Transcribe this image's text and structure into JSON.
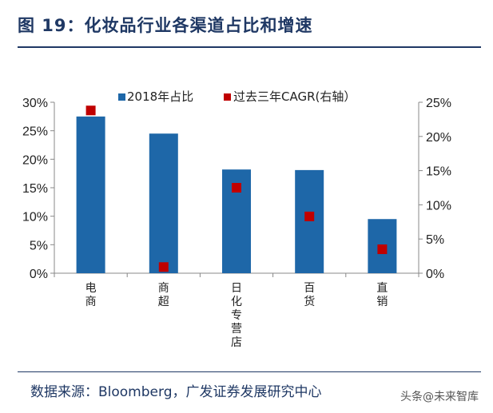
{
  "title": "图 19：化妆品行业各渠道占比和增速",
  "source": "数据来源：Bloomberg，广发证券发展研究中心",
  "watermark": "头条@未来智库",
  "colors": {
    "bar": "#1e67a8",
    "marker": "#c00000",
    "title": "#1f3864"
  },
  "chart_data": {
    "type": "bar",
    "categories": [
      "电商",
      "商超",
      "日化专营店",
      "百货",
      "直销"
    ],
    "series": [
      {
        "name": "2018年占比",
        "type": "bar",
        "axis": "left",
        "values": [
          27.5,
          24.5,
          18.2,
          18.1,
          9.5
        ]
      },
      {
        "name": "过去三年CAGR(右轴）",
        "type": "scatter",
        "axis": "right",
        "values": [
          23.8,
          0.9,
          12.5,
          8.3,
          3.5
        ]
      }
    ],
    "ylim": [
      0,
      30
    ],
    "yticks": [
      "0%",
      "5%",
      "10%",
      "15%",
      "20%",
      "25%",
      "30%"
    ],
    "y2lim": [
      0,
      25
    ],
    "y2ticks": [
      "0%",
      "5%",
      "10%",
      "15%",
      "20%",
      "25%"
    ],
    "legend": "top",
    "grid": false
  }
}
